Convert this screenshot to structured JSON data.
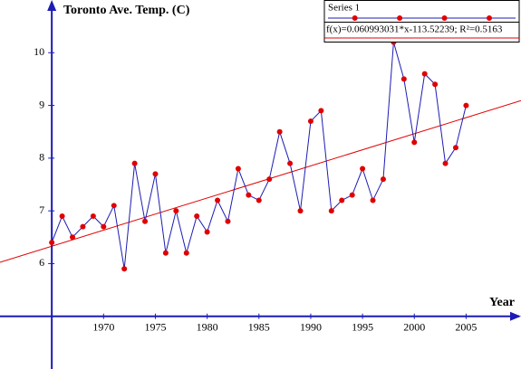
{
  "chart_data": {
    "type": "line",
    "title": "Toronto Ave. Temp. (C)",
    "x_label": "Year",
    "x": [
      1965,
      1966,
      1967,
      1968,
      1969,
      1970,
      1971,
      1972,
      1973,
      1974,
      1975,
      1976,
      1977,
      1978,
      1979,
      1980,
      1981,
      1982,
      1983,
      1984,
      1985,
      1986,
      1987,
      1988,
      1989,
      1990,
      1991,
      1992,
      1993,
      1994,
      1995,
      1996,
      1997,
      1998,
      1999,
      2000,
      2001,
      2002,
      2003,
      2004,
      2005
    ],
    "series": [
      {
        "name": "Series 1",
        "color": "#1c1cb4",
        "marker_color": "#e00000",
        "values": [
          6.4,
          6.9,
          6.5,
          6.7,
          6.9,
          6.7,
          7.1,
          5.9,
          7.9,
          6.8,
          7.7,
          6.2,
          7.0,
          6.2,
          6.9,
          6.6,
          7.2,
          6.8,
          7.8,
          7.3,
          7.2,
          7.6,
          8.5,
          7.9,
          7.0,
          8.7,
          8.9,
          7.0,
          7.2,
          7.3,
          7.8,
          7.2,
          7.6,
          10.2,
          9.5,
          8.3,
          9.6,
          9.4,
          7.9,
          8.2,
          9.0
        ]
      }
    ],
    "trendline": {
      "label": "f(x)=0.060993031*x-113.52239; R²=0.5163",
      "slope": 0.060993031,
      "intercept": -113.52239,
      "color": "#e00000"
    },
    "xlim": [
      1960,
      2010.3
    ],
    "ylim": [
      4,
      11
    ],
    "xticks": [
      1970,
      1975,
      1980,
      1985,
      1990,
      1995,
      2000,
      2005
    ],
    "yticks": [
      6,
      7,
      8,
      9,
      10
    ],
    "axis_origin": [
      1965,
      5
    ],
    "axis_color": "#1c1cb4",
    "legend": "top-right"
  }
}
